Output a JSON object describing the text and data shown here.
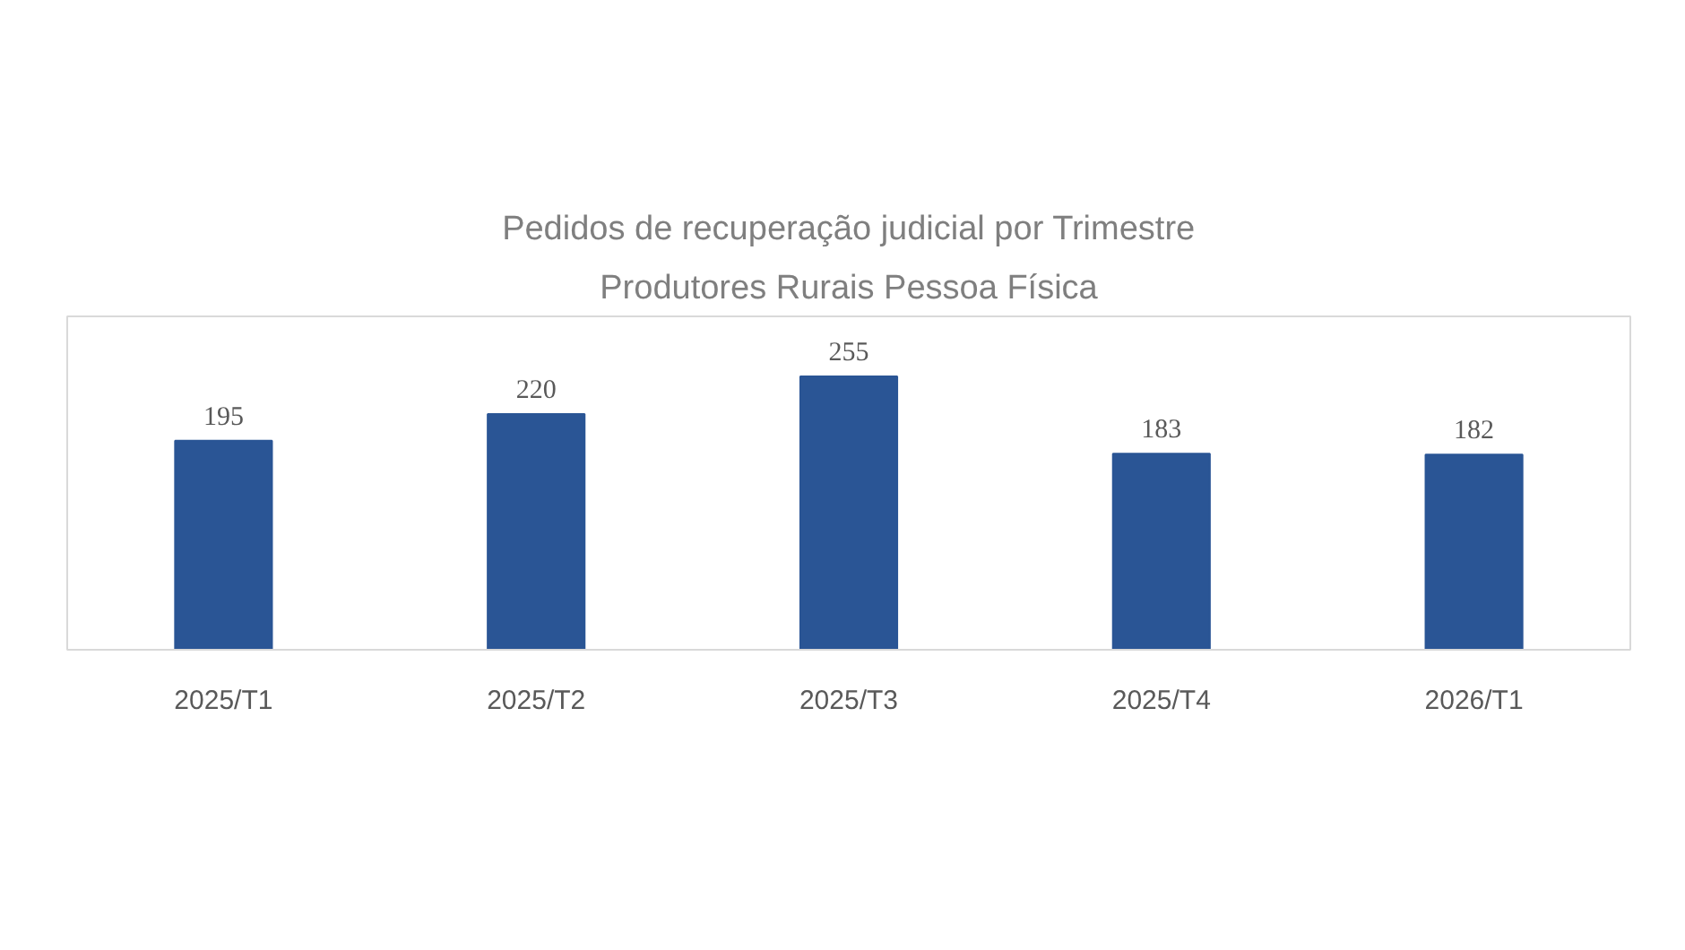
{
  "chart_data": {
    "type": "bar",
    "title": "Pedidos de recuperação judicial por Trimestre",
    "subtitle": "Produtores Rurais Pessoa Física",
    "categories": [
      "2025/T1",
      "2025/T2",
      "2025/T3",
      "2025/T4",
      "2026/T1"
    ],
    "values": [
      195,
      220,
      255,
      183,
      182
    ],
    "color": "#2a5595",
    "data_labels": true,
    "grid": false
  }
}
